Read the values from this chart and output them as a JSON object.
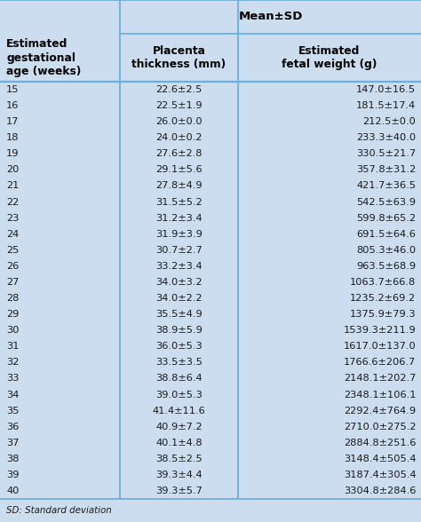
{
  "title": "Mean±SD",
  "col1_header_line1": "Estimated",
  "col1_header_line2": "gestational",
  "col1_header_line3": "age (weeks)",
  "col2_header_line1": "Placenta",
  "col2_header_line2": "thickness (mm)",
  "col3_header_line1": "Estimated",
  "col3_header_line2": "fetal weight (g)",
  "footer": "SD: Standard deviation",
  "rows": [
    [
      "15",
      "22.6±2.5",
      "147.0±16.5"
    ],
    [
      "16",
      "22.5±1.9",
      "181.5±17.4"
    ],
    [
      "17",
      "26.0±0.0",
      "212.5±0.0"
    ],
    [
      "18",
      "24.0±0.2",
      "233.3±40.0"
    ],
    [
      "19",
      "27.6±2.8",
      "330.5±21.7"
    ],
    [
      "20",
      "29.1±5.6",
      "357.8±31.2"
    ],
    [
      "21",
      "27.8±4.9",
      "421.7±36.5"
    ],
    [
      "22",
      "31.5±5.2",
      "542.5±63.9"
    ],
    [
      "23",
      "31.2±3.4",
      "599.8±65.2"
    ],
    [
      "24",
      "31.9±3.9",
      "691.5±64.6"
    ],
    [
      "25",
      "30.7±2.7",
      "805.3±46.0"
    ],
    [
      "26",
      "33.2±3.4",
      "963.5±68.9"
    ],
    [
      "27",
      "34.0±3.2",
      "1063.7±66.8"
    ],
    [
      "28",
      "34.0±2.2",
      "1235.2±69.2"
    ],
    [
      "29",
      "35.5±4.9",
      "1375.9±79.3"
    ],
    [
      "30",
      "38.9±5.9",
      "1539.3±211.9"
    ],
    [
      "31",
      "36.0±5.3",
      "1617.0±137.0"
    ],
    [
      "32",
      "33.5±3.5",
      "1766.6±206.7"
    ],
    [
      "33",
      "38.8±6.4",
      "2148.1±202.7"
    ],
    [
      "34",
      "39.0±5.3",
      "2348.1±106.1"
    ],
    [
      "35",
      "41.4±11.6",
      "2292.4±764.9"
    ],
    [
      "36",
      "40.9±7.2",
      "2710.0±275.2"
    ],
    [
      "37",
      "40.1±4.8",
      "2884.8±251.6"
    ],
    [
      "38",
      "38.5±2.5",
      "3148.4±505.4"
    ],
    [
      "39",
      "39.3±4.4",
      "3187.4±305.4"
    ],
    [
      "40",
      "39.3±5.7",
      "3304.8±284.6"
    ]
  ],
  "bg_color": "#ccddf0",
  "row_text_color": "#1a1a1a",
  "header_text_color": "#000000",
  "border_color": "#6aaee0",
  "col_splits": [
    0.285,
    0.565
  ],
  "font_size": 8.2,
  "header_font_size": 8.8,
  "title_font_size": 9.5
}
